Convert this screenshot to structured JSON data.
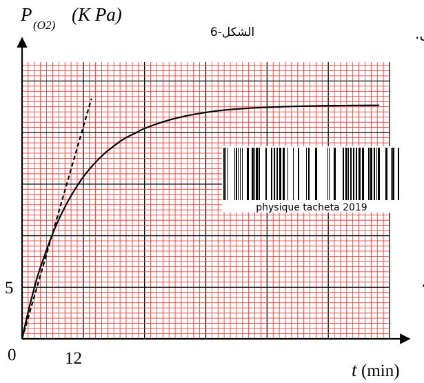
{
  "figure_label": "الشكل-6",
  "stray_text": {
    "top_right": "عل.",
    "middle_right": "يه"
  },
  "watermark": {
    "text": "physique tacheta 2019"
  },
  "axes": {
    "y_label": {
      "main": "P",
      "subscript": "(O2)",
      "unit": "(K Pa)"
    },
    "x_label": {
      "main": "t",
      "unit": "(min)"
    },
    "origin_label": "0",
    "y_tick_label": "5",
    "x_tick_label": "12"
  },
  "colors": {
    "minor_grid": "#e8413d",
    "major_grid": "#000000",
    "curve": "#000000",
    "tangent": "#000000",
    "background": "#ffffff"
  },
  "chart_data": {
    "type": "line",
    "xlabel": "t (min)",
    "ylabel": "P(O2) (K Pa)",
    "xlim": [
      0,
      72
    ],
    "ylim": [
      0,
      27.5
    ],
    "x_ticks_labeled": [
      0,
      12
    ],
    "y_ticks_labeled": [
      0,
      5
    ],
    "minor_grid_step": {
      "x": 1.2,
      "y": 0.5
    },
    "major_grid_step": {
      "x": 12,
      "y": 5
    },
    "grid": true,
    "series": [
      {
        "style": "solid",
        "x": [
          0,
          1,
          2,
          3,
          4,
          6,
          8,
          10,
          12,
          14,
          16,
          18,
          20,
          22,
          24,
          28,
          32,
          36,
          40,
          44,
          48,
          52,
          56,
          60,
          64,
          68,
          70
        ],
        "y": [
          0,
          2.2,
          4.2,
          6.0,
          7.5,
          10.2,
          12.4,
          14.2,
          15.7,
          16.9,
          17.9,
          18.7,
          19.4,
          19.9,
          20.4,
          21.1,
          21.6,
          21.95,
          22.2,
          22.35,
          22.45,
          22.52,
          22.57,
          22.6,
          22.62,
          22.63,
          22.63
        ]
      },
      {
        "style": "dashed",
        "x": [
          0,
          13.6
        ],
        "y": [
          0,
          23.3
        ]
      }
    ]
  }
}
